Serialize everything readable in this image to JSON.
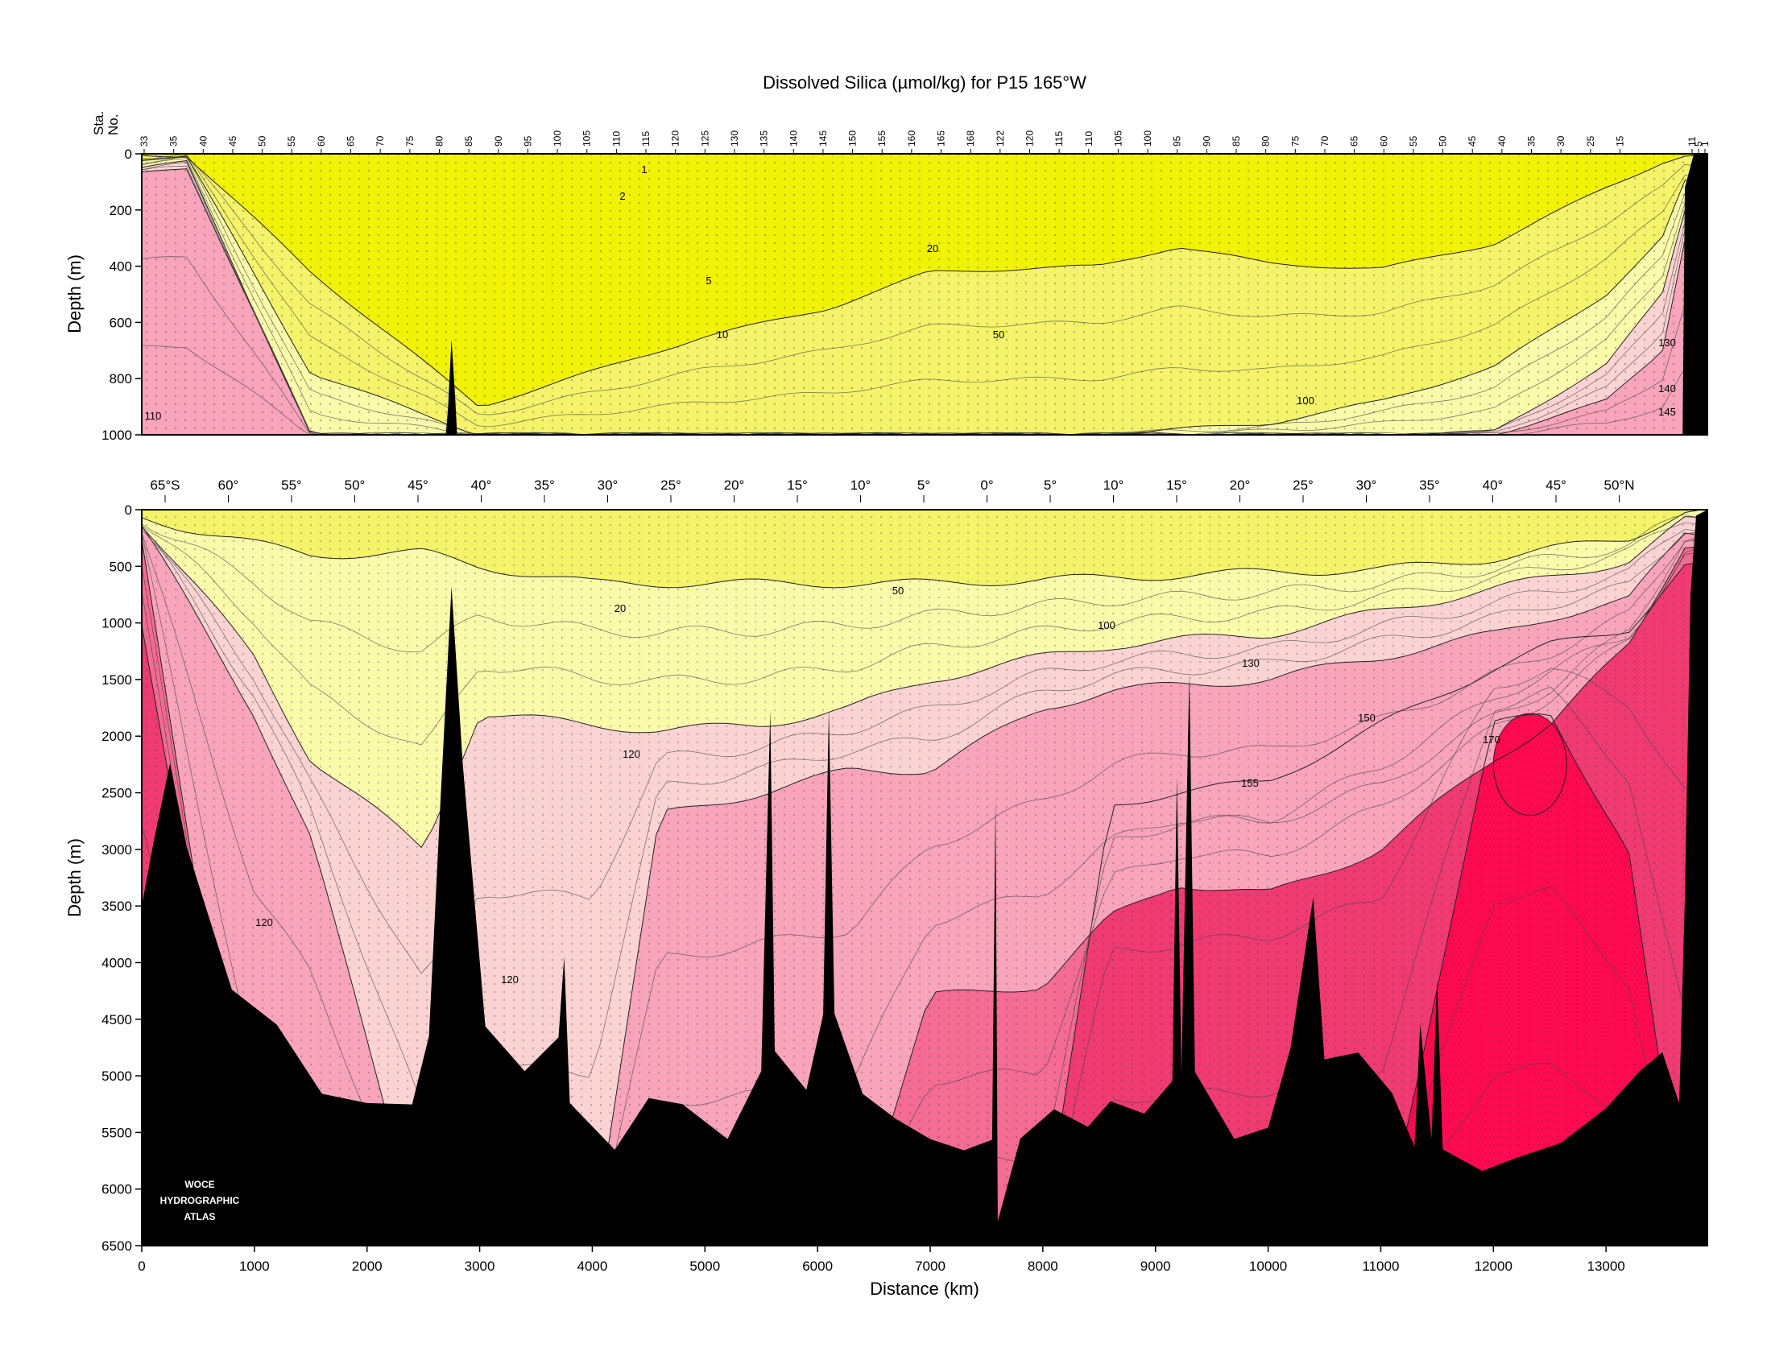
{
  "chart_data": {
    "type": "heatmap",
    "title": "Dissolved Silica (µmol/kg) for P15 165°W",
    "xlabel": "Distance (km)",
    "ylabel": "Depth (m)",
    "station_axis_label": [
      "Sta.",
      "No."
    ],
    "station_labels": [
      "33",
      "35",
      "40",
      "45",
      "50",
      "55",
      "60",
      "65",
      "70",
      "75",
      "80",
      "85",
      "90",
      "95",
      "100",
      "105",
      "110",
      "115",
      "120",
      "125",
      "130",
      "135",
      "140",
      "145",
      "150",
      "155",
      "160",
      "165",
      "168",
      "122",
      "120",
      "115",
      "110",
      "105",
      "100",
      "95",
      "90",
      "85",
      "80",
      "75",
      "70",
      "65",
      "60",
      "55",
      "50",
      "45",
      "40",
      "35",
      "30",
      "25",
      "15",
      "11",
      "5",
      "1"
    ],
    "latitude_labels": [
      "65°S",
      "60°",
      "55°",
      "50°",
      "45°",
      "40°",
      "35°",
      "30°",
      "25°",
      "20°",
      "15°",
      "10°",
      "5°",
      "0°",
      "5°",
      "10°",
      "15°",
      "20°",
      "25°",
      "30°",
      "35°",
      "40°",
      "45°",
      "50°N"
    ],
    "xlim": [
      0,
      13900
    ],
    "x_ticks": [
      0,
      1000,
      2000,
      3000,
      4000,
      5000,
      6000,
      7000,
      8000,
      9000,
      10000,
      11000,
      12000,
      13000
    ],
    "panels": [
      {
        "name": "upper",
        "ylim": [
          0,
          1000
        ],
        "y_ticks": [
          0,
          200,
          400,
          600,
          800,
          1000
        ],
        "contour_labels": [
          "1",
          "2",
          "5",
          "10",
          "20",
          "50",
          "100",
          "110",
          "130",
          "140",
          "145"
        ],
        "sections": [
          {
            "x": 0,
            "boundaries": [
              6,
              18,
              50,
              70
            ]
          },
          {
            "x": 400,
            "boundaries": [
              6,
              10,
              30,
              50
            ]
          },
          {
            "x": 1500,
            "boundaries": [
              420,
              780,
              1000,
              1000
            ]
          },
          {
            "x": 3000,
            "boundaries": [
              900,
              1000,
              1000,
              1000
            ]
          },
          {
            "x": 5000,
            "boundaries": [
              650,
              1000,
              1000,
              1000
            ]
          },
          {
            "x": 6100,
            "boundaries": [
              550,
              1000,
              1000,
              1000
            ]
          },
          {
            "x": 7000,
            "boundaries": [
              420,
              1000,
              1000,
              1000
            ]
          },
          {
            "x": 8500,
            "boundaries": [
              400,
              1000,
              1000,
              1000
            ]
          },
          {
            "x": 9200,
            "boundaries": [
              330,
              980,
              1000,
              1000
            ]
          },
          {
            "x": 10000,
            "boundaries": [
              390,
              960,
              1000,
              1000
            ]
          },
          {
            "x": 11000,
            "boundaries": [
              410,
              880,
              1000,
              1000
            ]
          },
          {
            "x": 12000,
            "boundaries": [
              320,
              760,
              990,
              1000
            ]
          },
          {
            "x": 13000,
            "boundaries": [
              120,
              500,
              750,
              880
            ]
          },
          {
            "x": 13500,
            "boundaries": [
              30,
              300,
              500,
              700
            ]
          },
          {
            "x": 13700,
            "boundaries": [
              8,
              100,
              200,
              300
            ]
          }
        ],
        "bottom_depth": [
          {
            "x": 0,
            "d": 1000
          },
          {
            "x": 2700,
            "d": 1000
          },
          {
            "x": 2720,
            "d": 900
          },
          {
            "x": 2750,
            "d": 660
          },
          {
            "x": 2780,
            "d": 850
          },
          {
            "x": 2800,
            "d": 1000
          },
          {
            "x": 13680,
            "d": 1000
          },
          {
            "x": 13700,
            "d": 120
          },
          {
            "x": 13780,
            "d": 0
          },
          {
            "x": 13900,
            "d": 0
          }
        ]
      },
      {
        "name": "lower",
        "ylim": [
          0,
          6500
        ],
        "y_ticks": [
          0,
          500,
          1000,
          1500,
          2000,
          2500,
          3000,
          3500,
          4000,
          4500,
          5000,
          5500,
          6000,
          6500
        ],
        "contour_labels": [
          "20",
          "50",
          "100",
          "120",
          "120",
          "120",
          "130",
          "150",
          "155",
          "170"
        ],
        "sections": [
          {
            "x": 0,
            "boundaries": [
              70,
              110,
              150,
              300,
              1000,
              6500
            ]
          },
          {
            "x": 1000,
            "boundaries": [
              300,
              1300,
              1800,
              6500,
              6500,
              6500
            ]
          },
          {
            "x": 1500,
            "boundaries": [
              400,
              2200,
              2900,
              6500,
              6500,
              6500
            ]
          },
          {
            "x": 2500,
            "boundaries": [
              380,
              3000,
              6500,
              6500,
              6500,
              6500
            ]
          },
          {
            "x": 3000,
            "boundaries": [
              500,
              1800,
              6500,
              6500,
              6500,
              6500
            ]
          },
          {
            "x": 4000,
            "boundaries": [
              650,
              1900,
              6500,
              6500,
              6500,
              6500
            ]
          },
          {
            "x": 4600,
            "boundaries": [
              650,
              1950,
              2700,
              6500,
              6500,
              6500
            ]
          },
          {
            "x": 5500,
            "boundaries": [
              650,
              1900,
              2500,
              6500,
              6500,
              6500
            ]
          },
          {
            "x": 6300,
            "boundaries": [
              650,
              1750,
              2300,
              6500,
              6500,
              6500
            ]
          },
          {
            "x": 7000,
            "boundaries": [
              650,
              1500,
              2300,
              4300,
              6500,
              6500
            ]
          },
          {
            "x": 8000,
            "boundaries": [
              620,
              1300,
              1750,
              4200,
              6500,
              6500
            ]
          },
          {
            "x": 8600,
            "boundaries": [
              600,
              1200,
              1600,
              3600,
              2600,
              6500
            ]
          },
          {
            "x": 9200,
            "boundaries": [
              580,
              1150,
              1550,
              3300,
              2500,
              6500
            ]
          },
          {
            "x": 10000,
            "boundaries": [
              550,
              1100,
              1500,
              3400,
              2400,
              6500
            ]
          },
          {
            "x": 11000,
            "boundaries": [
              530,
              900,
              1300,
              3000,
              1900,
              6500
            ]
          },
          {
            "x": 12000,
            "boundaries": [
              430,
              700,
              1100,
              2200,
              1400,
              1900
            ]
          },
          {
            "x": 12500,
            "boundaries": [
              350,
              600,
              950,
              1900,
              1200,
              1800
            ]
          },
          {
            "x": 13200,
            "boundaries": [
              250,
              450,
              800,
              1200,
              1050,
              3000
            ]
          },
          {
            "x": 13700,
            "boundaries": [
              20,
              100,
              200,
              300,
              500,
              6500
            ]
          }
        ],
        "bottom_depth": [
          {
            "x": 0,
            "d": 3500
          },
          {
            "x": 100,
            "d": 3000
          },
          {
            "x": 250,
            "d": 2300
          },
          {
            "x": 400,
            "d": 3000
          },
          {
            "x": 800,
            "d": 4200
          },
          {
            "x": 1200,
            "d": 4600
          },
          {
            "x": 1600,
            "d": 5100
          },
          {
            "x": 2000,
            "d": 5300
          },
          {
            "x": 2400,
            "d": 5200
          },
          {
            "x": 2550,
            "d": 4600
          },
          {
            "x": 2650,
            "d": 2600
          },
          {
            "x": 2750,
            "d": 700
          },
          {
            "x": 2850,
            "d": 2300
          },
          {
            "x": 3050,
            "d": 4600
          },
          {
            "x": 3400,
            "d": 4900
          },
          {
            "x": 3700,
            "d": 4700
          },
          {
            "x": 3750,
            "d": 4000
          },
          {
            "x": 3800,
            "d": 5300
          },
          {
            "x": 4200,
            "d": 5600
          },
          {
            "x": 4500,
            "d": 5200
          },
          {
            "x": 4800,
            "d": 5300
          },
          {
            "x": 5200,
            "d": 5500
          },
          {
            "x": 5500,
            "d": 5000
          },
          {
            "x": 5580,
            "d": 1800
          },
          {
            "x": 5620,
            "d": 4800
          },
          {
            "x": 5900,
            "d": 5100
          },
          {
            "x": 6050,
            "d": 4400
          },
          {
            "x": 6100,
            "d": 1700
          },
          {
            "x": 6150,
            "d": 4400
          },
          {
            "x": 6400,
            "d": 5200
          },
          {
            "x": 6700,
            "d": 5400
          },
          {
            "x": 7000,
            "d": 5500
          },
          {
            "x": 7300,
            "d": 5700
          },
          {
            "x": 7550,
            "d": 5600
          },
          {
            "x": 7580,
            "d": 2500
          },
          {
            "x": 7600,
            "d": 6300
          },
          {
            "x": 7800,
            "d": 5500
          },
          {
            "x": 8100,
            "d": 5300
          },
          {
            "x": 8400,
            "d": 5500
          },
          {
            "x": 8600,
            "d": 5200
          },
          {
            "x": 8900,
            "d": 5300
          },
          {
            "x": 9150,
            "d": 5100
          },
          {
            "x": 9190,
            "d": 2300
          },
          {
            "x": 9230,
            "d": 5000
          },
          {
            "x": 9300,
            "d": 1500
          },
          {
            "x": 9350,
            "d": 5000
          },
          {
            "x": 9700,
            "d": 5500
          },
          {
            "x": 10000,
            "d": 5500
          },
          {
            "x": 10200,
            "d": 4800
          },
          {
            "x": 10400,
            "d": 3400
          },
          {
            "x": 10500,
            "d": 4800
          },
          {
            "x": 10800,
            "d": 4800
          },
          {
            "x": 11100,
            "d": 5200
          },
          {
            "x": 11300,
            "d": 5600
          },
          {
            "x": 11350,
            "d": 4500
          },
          {
            "x": 11450,
            "d": 5500
          },
          {
            "x": 11500,
            "d": 4100
          },
          {
            "x": 11550,
            "d": 5600
          },
          {
            "x": 11900,
            "d": 5900
          },
          {
            "x": 12200,
            "d": 5700
          },
          {
            "x": 12600,
            "d": 5600
          },
          {
            "x": 13000,
            "d": 5300
          },
          {
            "x": 13300,
            "d": 4900
          },
          {
            "x": 13500,
            "d": 4800
          },
          {
            "x": 13650,
            "d": 5300
          },
          {
            "x": 13700,
            "d": 3500
          },
          {
            "x": 13750,
            "d": 800
          },
          {
            "x": 13800,
            "d": 100
          },
          {
            "x": 13900,
            "d": 0
          }
        ],
        "high_cores": [
          {
            "value": 170,
            "x_range": [
              12000,
              12650
            ],
            "depth_range": [
              1800,
              2700
            ]
          }
        ]
      }
    ],
    "colors": {
      "bins": [
        "#f2f205",
        "#f4f36a",
        "#fafaab",
        "#fbd3d3",
        "#f8a4ba",
        "#f46b93",
        "#ef3a72",
        "#ff0a50"
      ],
      "bathymetry": "#000000",
      "background": "#ffffff"
    },
    "watermark": [
      "WOCE",
      "HYDROGRAPHIC",
      "ATLAS"
    ]
  }
}
